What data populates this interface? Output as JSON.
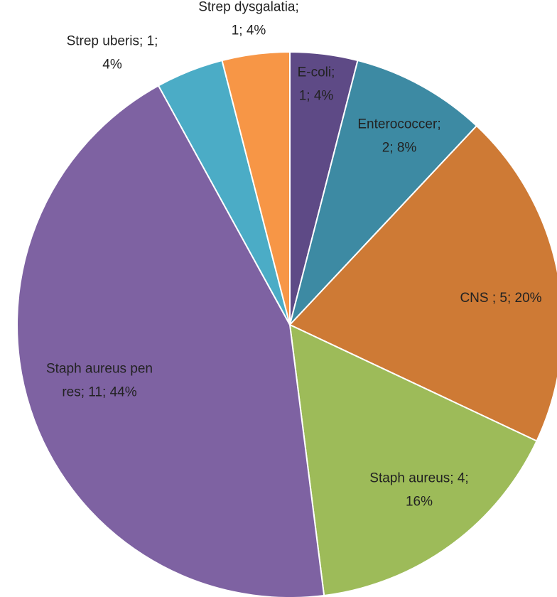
{
  "chart_data": {
    "type": "pie",
    "title": "",
    "start_angle_deg": 0,
    "direction": "clockwise",
    "legend": "none",
    "slices": [
      {
        "name": "E-coli",
        "value": 1,
        "percent": "4%",
        "color": "#5E4A86",
        "label_lines": [
          "E-coli;",
          "1; 4%"
        ]
      },
      {
        "name": "Enterococcer",
        "value": 2,
        "percent": "8%",
        "color": "#3D8AA3",
        "label_lines": [
          "Enterococcer;",
          "2; 8%"
        ]
      },
      {
        "name": "CNS",
        "value": 5,
        "percent": "20%",
        "color": "#CE7A35",
        "label_lines": [
          "CNS ; 5; 20%"
        ]
      },
      {
        "name": "Staph aureus",
        "value": 4,
        "percent": "16%",
        "color": "#9DBB59",
        "label_lines": [
          "Staph aureus; 4;",
          "16%"
        ]
      },
      {
        "name": "Staph aureus pen res",
        "value": 11,
        "percent": "44%",
        "color": "#7E62A2",
        "label_lines": [
          "Staph aureus pen",
          "res; 11; 44%"
        ]
      },
      {
        "name": "Strep uberis",
        "value": 1,
        "percent": "4%",
        "color": "#4BACC6",
        "label_lines": [
          "Strep uberis; 1;",
          "4%"
        ]
      },
      {
        "name": "Strep dysgalatia",
        "value": 1,
        "percent": "4%",
        "color": "#F79646",
        "label_lines": [
          "Strep dysgalatia;",
          "1; 4%"
        ]
      }
    ]
  }
}
